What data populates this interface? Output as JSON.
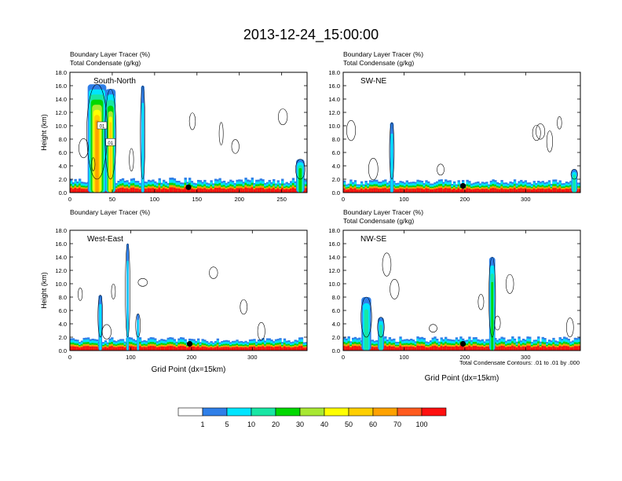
{
  "figure": {
    "title": "2013-12-24_15:00:00",
    "footnote": "Total Condensate Contours: .01 to .01 by .000"
  },
  "colors": {
    "bin_0": "#ffffff",
    "bin_1": "#2f7fe8",
    "bin_5": "#00e5ff",
    "bin_10": "#18e6a4",
    "bin_20": "#00d800",
    "bin_30": "#a8e832",
    "bin_40": "#ffff00",
    "bin_50": "#ffcf00",
    "bin_60": "#ffa200",
    "bin_70": "#ff5a1e",
    "bin_100": "#ff1010"
  },
  "chart_data": [
    {
      "type": "heatmap",
      "subtitle_line1": "Boundary Layer Tracer   (%)",
      "subtitle_line2": "Total Condensate   (g/kg)",
      "panel_label": "South-North",
      "ylabel": "Height (km)",
      "xlabel": "",
      "xlim": [
        0,
        280
      ],
      "ylim": [
        0,
        18
      ],
      "xticks": [
        0,
        50,
        100,
        150,
        200,
        250
      ],
      "yticks": [
        "0.0",
        "2.0",
        "4.0",
        "6.0",
        "8.0",
        "10.0",
        "12.0",
        "14.0",
        "16.0",
        "18.0"
      ],
      "boundary_layer_top_km": 1.8,
      "point_marker": {
        "x": 140,
        "y": 0.8
      },
      "plumes": [
        {
          "x": 32,
          "top_km": 16.2,
          "width": 22,
          "peak_percent": 60
        },
        {
          "x": 48,
          "top_km": 15.5,
          "width": 12,
          "peak_percent": 50
        },
        {
          "x": 86,
          "top_km": 16.0,
          "width": 4,
          "peak_percent": 5
        },
        {
          "x": 272,
          "top_km": 5.0,
          "width": 10,
          "peak_percent": 20
        }
      ],
      "contour_labels": [
        "01",
        "01"
      ]
    },
    {
      "type": "heatmap",
      "subtitle_line1": "Boundary Layer Tracer   (%)",
      "subtitle_line2": "Total Condensate   (g/kg)",
      "panel_label": "SW-NE",
      "ylabel": "",
      "xlabel": "",
      "xlim": [
        0,
        390
      ],
      "ylim": [
        0,
        18
      ],
      "xticks": [
        0,
        100,
        200,
        300
      ],
      "yticks": [
        "0.0",
        "2.0",
        "4.0",
        "6.0",
        "8.0",
        "10.0",
        "12.0",
        "14.0",
        "16.0",
        "18.0"
      ],
      "boundary_layer_top_km": 1.6,
      "point_marker": {
        "x": 197,
        "y": 1.0
      },
      "plumes": [
        {
          "x": 80,
          "top_km": 10.5,
          "width": 6,
          "peak_percent": 5
        },
        {
          "x": 380,
          "top_km": 3.5,
          "width": 10,
          "peak_percent": 10
        }
      ],
      "contour_labels": []
    },
    {
      "type": "heatmap",
      "subtitle_line1": "Boundary Layer Tracer   (%)",
      "subtitle_line2": "",
      "panel_label": "West-East",
      "ylabel": "Height (km)",
      "xlabel": "Grid Point (dx=15km)",
      "xlim": [
        0,
        390
      ],
      "ylim": [
        0,
        18
      ],
      "xticks": [
        0,
        100,
        200,
        300
      ],
      "yticks": [
        "0.0",
        "2.0",
        "4.0",
        "6.0",
        "8.0",
        "10.0",
        "12.0",
        "14.0",
        "16.0",
        "18.0"
      ],
      "boundary_layer_top_km": 1.6,
      "point_marker": {
        "x": 197,
        "y": 1.0
      },
      "plumes": [
        {
          "x": 50,
          "top_km": 8.3,
          "width": 6,
          "peak_percent": 5
        },
        {
          "x": 95,
          "top_km": 16.0,
          "width": 4,
          "peak_percent": 5
        },
        {
          "x": 112,
          "top_km": 5.5,
          "width": 4,
          "peak_percent": 5
        }
      ],
      "contour_labels": []
    },
    {
      "type": "heatmap",
      "subtitle_line1": "Boundary Layer Tracer   (%)",
      "subtitle_line2": "Total Condensate   (g/kg)",
      "panel_label": "NW-SE",
      "ylabel": "",
      "xlabel": "Grid Point (dx=15km)",
      "xlim": [
        0,
        390
      ],
      "ylim": [
        0,
        18
      ],
      "xticks": [
        0,
        100,
        200,
        300
      ],
      "yticks": [
        "0.0",
        "2.0",
        "4.0",
        "6.0",
        "8.0",
        "10.0",
        "12.0",
        "14.0",
        "16.0",
        "18.0"
      ],
      "boundary_layer_top_km": 1.7,
      "point_marker": {
        "x": 197,
        "y": 1.0
      },
      "plumes": [
        {
          "x": 38,
          "top_km": 8.0,
          "width": 16,
          "peak_percent": 10
        },
        {
          "x": 62,
          "top_km": 5.0,
          "width": 10,
          "peak_percent": 10
        },
        {
          "x": 245,
          "top_km": 14.0,
          "width": 10,
          "peak_percent": 20
        }
      ],
      "contour_labels": []
    }
  ],
  "colorbar": {
    "labels": [
      "1",
      "5",
      "10",
      "20",
      "30",
      "40",
      "50",
      "60",
      "70",
      "100"
    ]
  }
}
